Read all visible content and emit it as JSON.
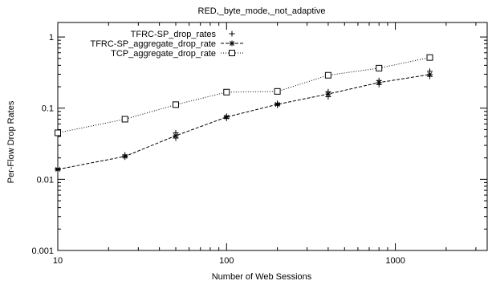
{
  "chart_data": {
    "type": "line",
    "title": "RED,_byte_mode,_not_adaptive",
    "xlabel": "Number of Web Sessions",
    "ylabel": "Per-Flow Drop Rates",
    "xscale": "log",
    "yscale": "log",
    "xlim": [
      10,
      3500
    ],
    "ylim": [
      0.001,
      1.6
    ],
    "xticks": [
      10,
      100,
      1000
    ],
    "xtick_labels": [
      "10",
      "100",
      "1000"
    ],
    "yticks": [
      0.001,
      0.01,
      0.1,
      1
    ],
    "ytick_labels": [
      "0.001",
      "0.01",
      "0.1",
      "1"
    ],
    "grid": false,
    "legend_position": "top-left",
    "series": [
      {
        "name": "TFRC-SP_drop_rates",
        "marker": "plus",
        "line": "none",
        "color": "#000000",
        "x": [
          10,
          10,
          25,
          25,
          50,
          50,
          100,
          100,
          200,
          200,
          400,
          400,
          800,
          800,
          1600,
          1600
        ],
        "y": [
          0.0135,
          0.0142,
          0.0205,
          0.022,
          0.038,
          0.045,
          0.072,
          0.077,
          0.11,
          0.117,
          0.145,
          0.17,
          0.215,
          0.245,
          0.28,
          0.33
        ]
      },
      {
        "name": "TFRC-SP_aggregate_drop_rate",
        "marker": "star",
        "line": "dashed",
        "color": "#000000",
        "x": [
          10,
          25,
          50,
          100,
          200,
          400,
          800,
          1600
        ],
        "y": [
          0.0138,
          0.021,
          0.041,
          0.075,
          0.113,
          0.158,
          0.229,
          0.297
        ]
      },
      {
        "name": "TCP_aggregate_drop_rate",
        "marker": "square",
        "line": "dotted",
        "color": "#000000",
        "x": [
          10,
          25,
          50,
          100,
          200,
          400,
          800,
          1600
        ],
        "y": [
          0.045,
          0.07,
          0.112,
          0.168,
          0.172,
          0.29,
          0.365,
          0.515
        ]
      }
    ]
  }
}
